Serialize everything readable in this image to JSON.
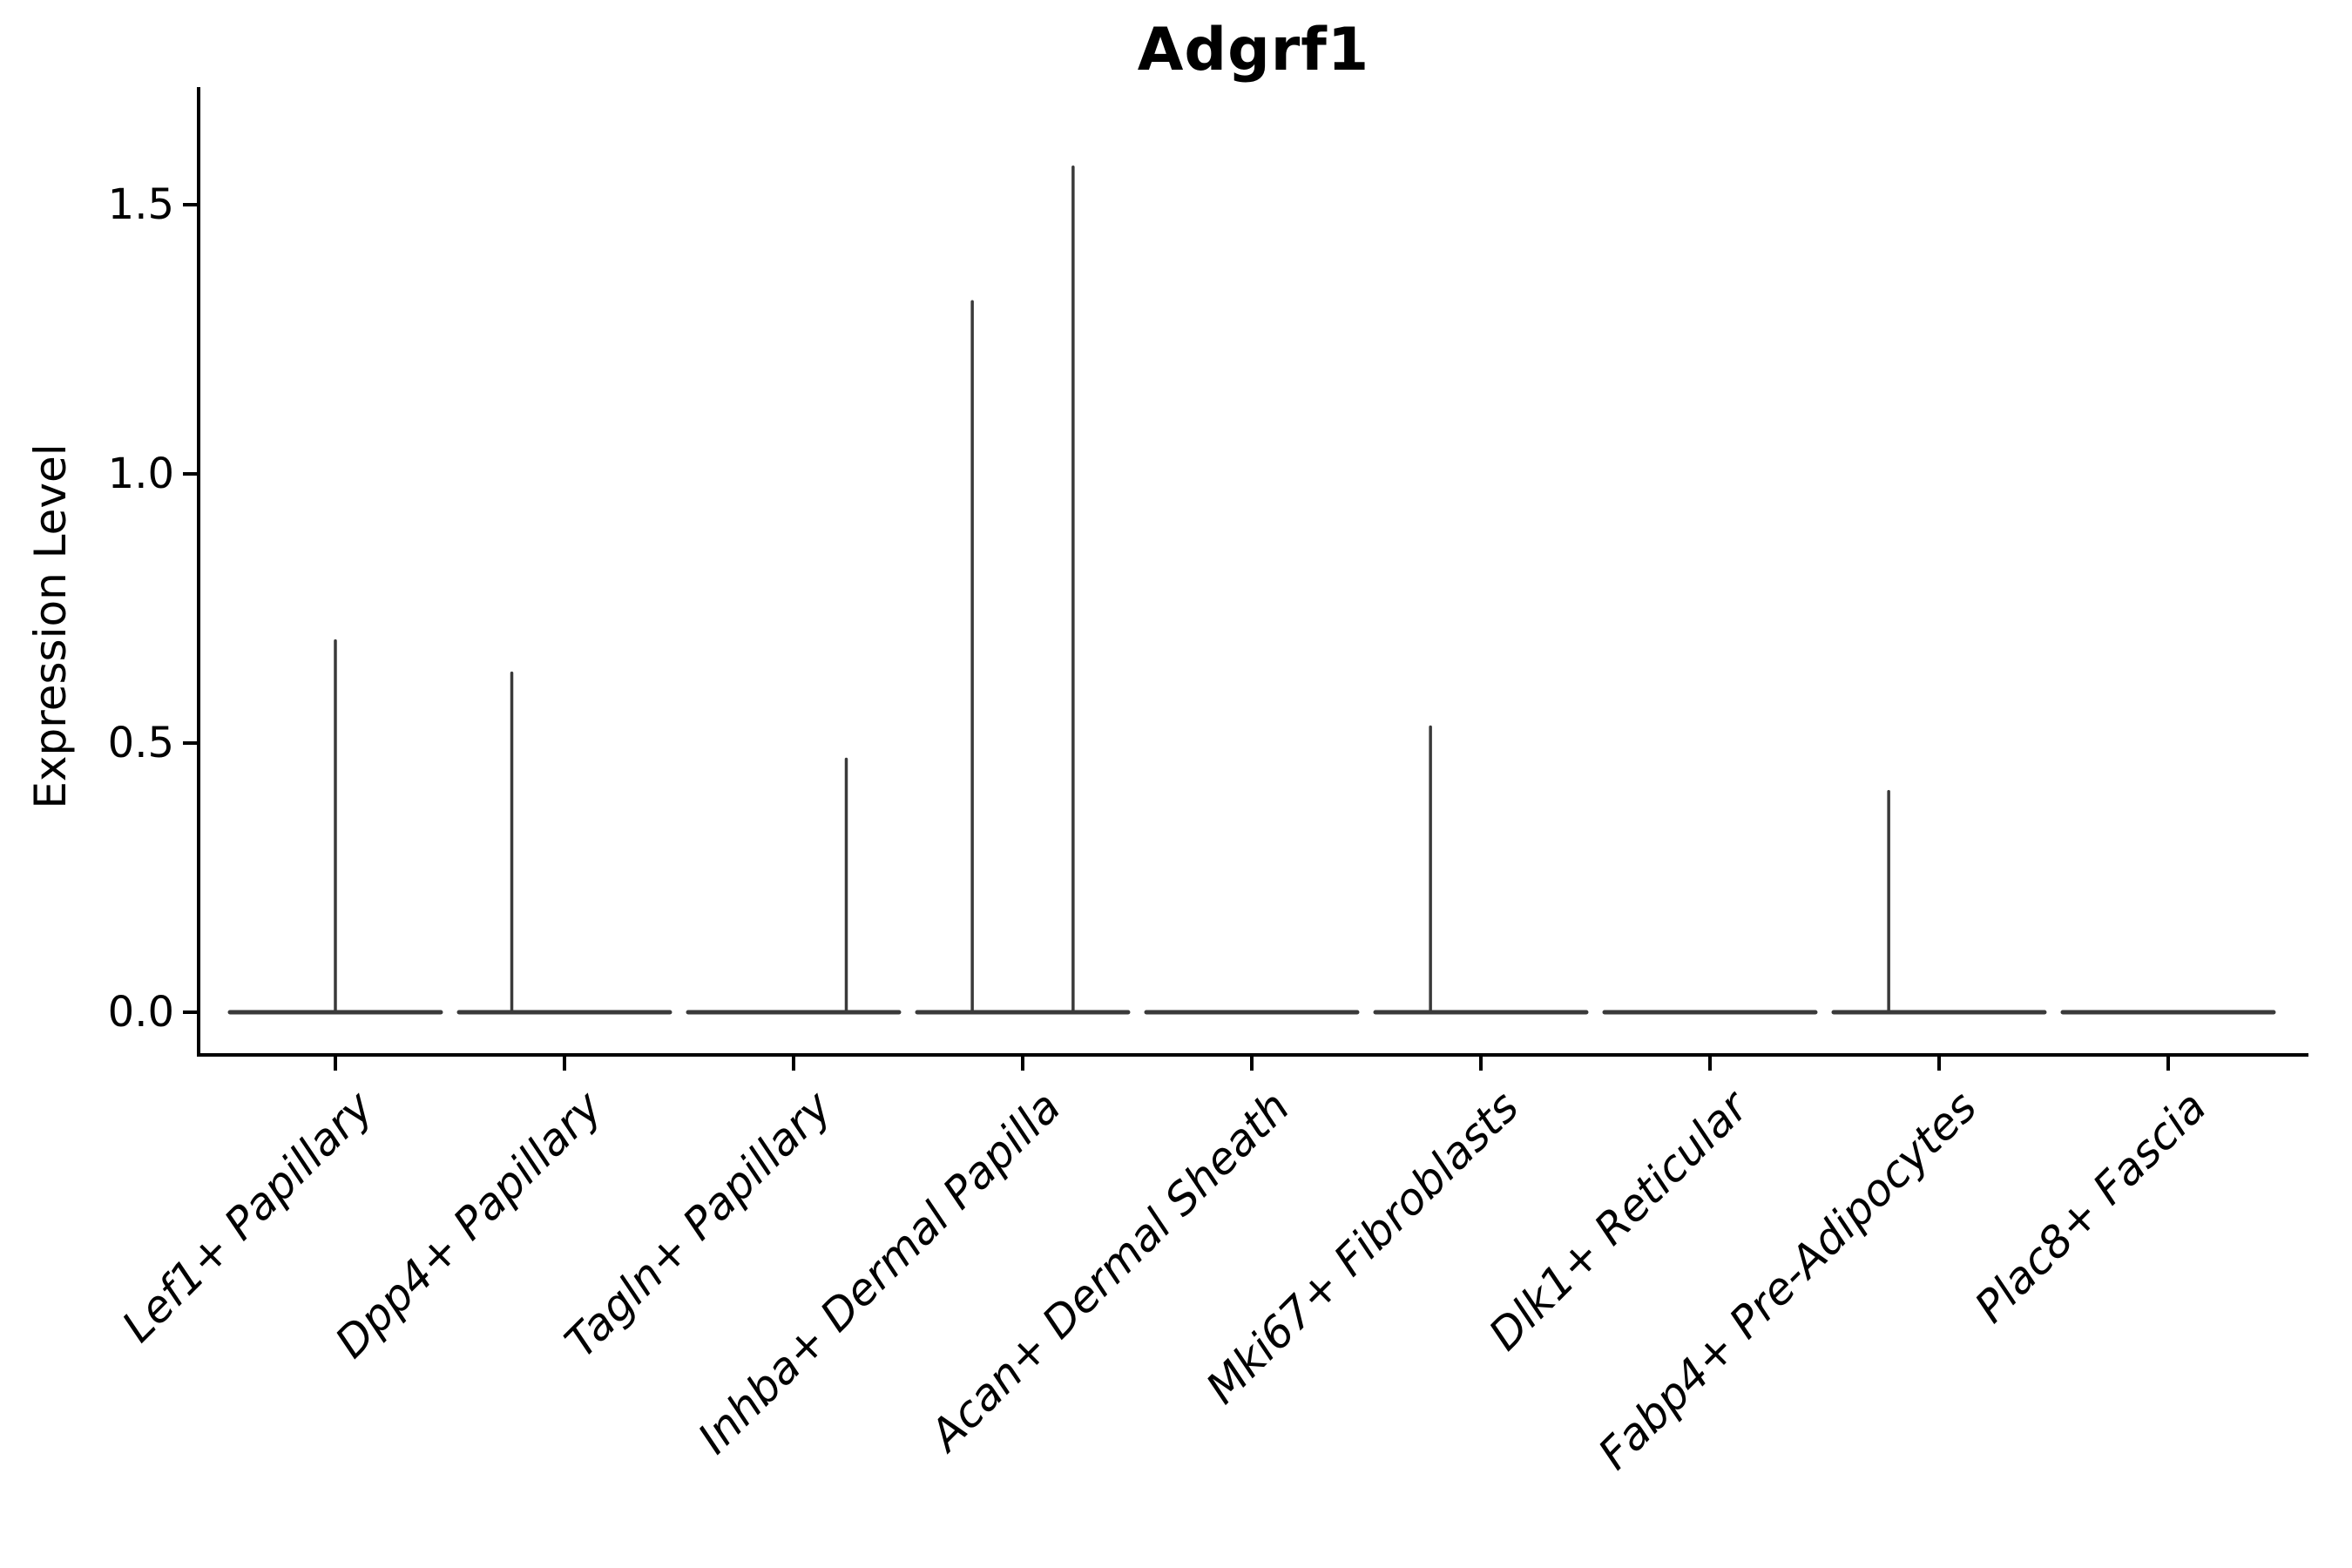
{
  "figure": {
    "title": "Adgrf1",
    "ylabel": "Expression Level"
  },
  "chart_data": {
    "type": "violin",
    "title": "Adgrf1",
    "xlabel": "",
    "ylabel": "Expression Level",
    "grid": false,
    "legend": "none",
    "ylim": [
      -0.08,
      1.72
    ],
    "ytick_labels": [
      "0.0",
      "0.5",
      "1.0",
      "1.5"
    ],
    "ytick_values": [
      0.0,
      0.5,
      1.0,
      1.5
    ],
    "categories": [
      "Lef1+ Papillary",
      "Dpp4+ Papillary",
      "Tagln+ Papillary",
      "Inhba+ Dermal Papilla",
      "Acan+ Dermal Sheath",
      "Mki67+ Fibroblasts",
      "Dlk1+ Reticular",
      "Fabp4+ Pre-Adipocytes",
      "Plac8+ Fascia"
    ],
    "violins": [
      {
        "category": "Lef1+ Papillary",
        "baseline_value": 0.0,
        "spikes": [
          {
            "offset": 0.0,
            "max": 0.69
          }
        ]
      },
      {
        "category": "Dpp4+ Papillary",
        "baseline_value": 0.0,
        "spikes": [
          {
            "offset": -0.23,
            "max": 0.63
          }
        ]
      },
      {
        "category": "Tagln+ Papillary",
        "baseline_value": 0.0,
        "spikes": [
          {
            "offset": 0.23,
            "max": 0.47
          }
        ]
      },
      {
        "category": "Inhba+ Dermal Papilla",
        "baseline_value": 0.0,
        "spikes": [
          {
            "offset": -0.22,
            "max": 1.32
          },
          {
            "offset": 0.22,
            "max": 1.57
          }
        ]
      },
      {
        "category": "Acan+ Dermal Sheath",
        "baseline_value": 0.0,
        "spikes": []
      },
      {
        "category": "Mki67+ Fibroblasts",
        "baseline_value": 0.0,
        "spikes": [
          {
            "offset": -0.22,
            "max": 0.53
          }
        ]
      },
      {
        "category": "Dlk1+ Reticular",
        "baseline_value": 0.0,
        "spikes": []
      },
      {
        "category": "Fabp4+ Pre-Adipocytes",
        "baseline_value": 0.0,
        "spikes": [
          {
            "offset": -0.22,
            "max": 0.41
          }
        ]
      },
      {
        "category": "Plac8+ Fascia",
        "baseline_value": 0.0,
        "spikes": []
      }
    ],
    "violin_halfwidth_fraction": 0.46,
    "colors": {
      "violin_stroke": "#3a3a3a",
      "axis": "#000000",
      "text": "#000000",
      "background": "#ffffff"
    }
  }
}
